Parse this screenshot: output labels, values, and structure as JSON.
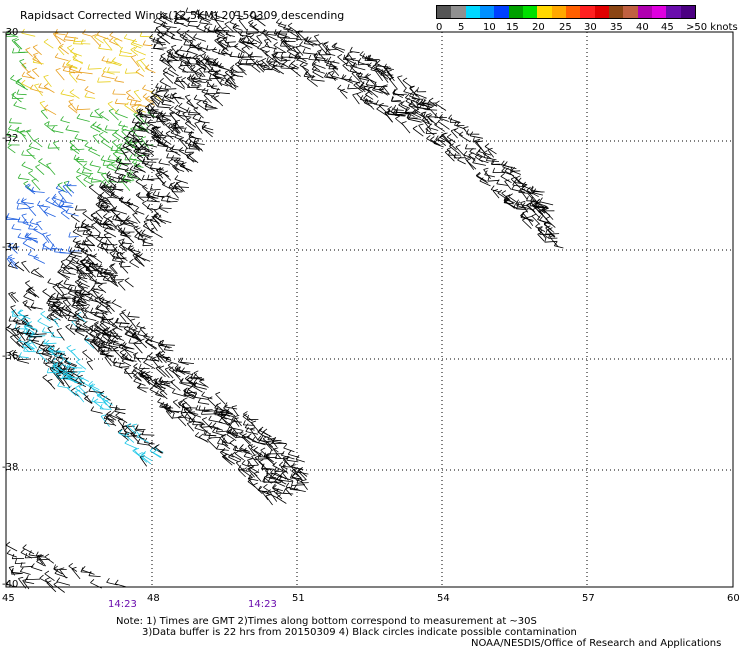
{
  "title": "Rapidsact Corrected Winds(12.5KM) 20150309 descending",
  "legend": {
    "colors": [
      "#555555",
      "#909090",
      "#00d8ff",
      "#0090ff",
      "#0040ff",
      "#00a000",
      "#00e000",
      "#ffd800",
      "#ffa800",
      "#ff6000",
      "#ff2020",
      "#e00000",
      "#8b4513",
      "#c06040",
      "#b000b0",
      "#e000e0",
      "#6a0dad",
      "#4b0082"
    ],
    "labels": [
      "0",
      "5",
      "10",
      "15",
      "20",
      "25",
      "30",
      "35",
      "40",
      "45",
      ">50 knots"
    ]
  },
  "axes": {
    "lon_labels": [
      "45",
      "48",
      "51",
      "54",
      "57",
      "60"
    ],
    "lat_labels": [
      "-30",
      "-32",
      "-34",
      "-36",
      "-38",
      "-40"
    ]
  },
  "times": [
    "14:23",
    "14:23"
  ],
  "notes": {
    "line1": "Note: 1) Times are GMT 2)Times along bottom correspond to measurement at ~30S",
    "line2": "3)Data buffer is 22 hrs from 20150309 4) Black circles indicate possible contamination",
    "line3": "NOAA/NESDIS/Office of Research and Applications"
  },
  "colors": {
    "wind_black": "#000000",
    "wind_orange": "#e8a020",
    "wind_yellow": "#e8d020",
    "wind_green": "#30b030",
    "wind_blue": "#2060e0",
    "wind_cyan": "#20c8e8",
    "grid": "#000000"
  }
}
